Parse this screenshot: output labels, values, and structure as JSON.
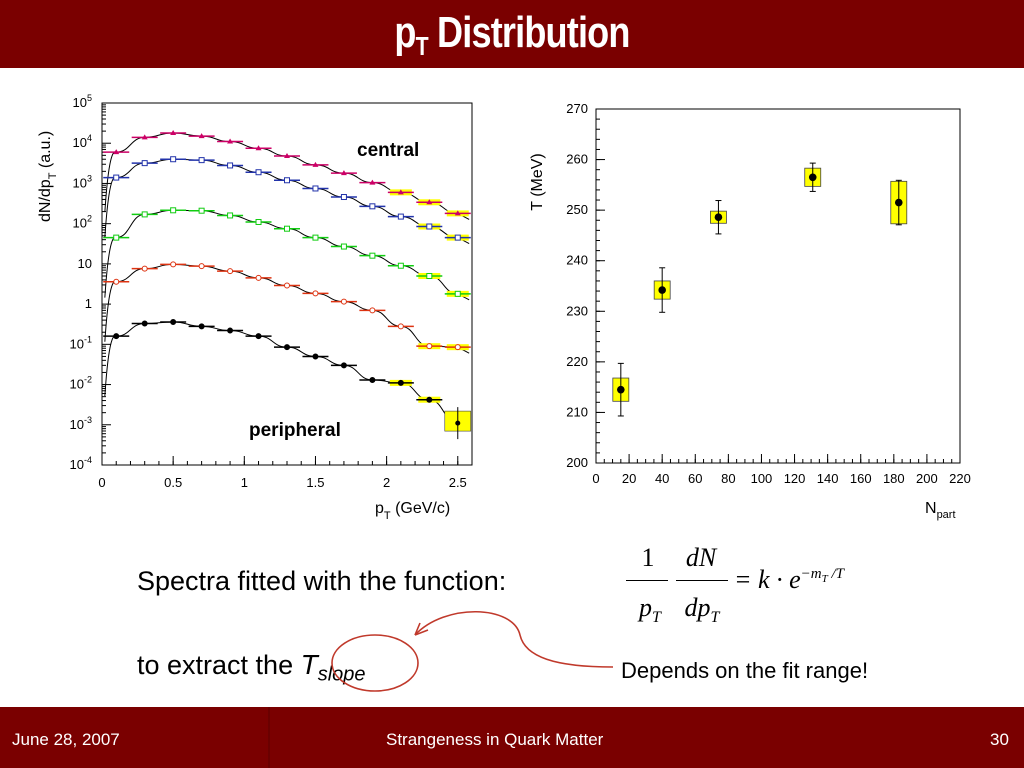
{
  "slide": {
    "title_main": "p",
    "title_sub": "T",
    "title_rest": " Distribution",
    "spectra_text": "Spectra fitted with the function:",
    "extract_prefix": "to extract the ",
    "tslope_T": "T",
    "tslope_sub": "slope",
    "note": "Depends on the fit range!",
    "formula": {
      "num1": "1",
      "den1": "p",
      "den1_sub": "T",
      "num2": "dN",
      "den2": "dp",
      "den2_sub": "T",
      "rhs": "= k · e",
      "exp": "−m",
      "exp_sub": "T",
      "exp_rest": " /T"
    }
  },
  "footer": {
    "date": "June 28, 2007",
    "center": "Strangeness in Quark Matter",
    "page": "30"
  },
  "colors": {
    "header": "#7a0000",
    "band_fill": "#ffff00",
    "circle": "#c0392b"
  },
  "chart_data": [
    {
      "type": "scatter",
      "log_y": true,
      "xlabel": "p",
      "xlabel_sub": "T",
      "xlabel_rest": " (GeV/c)",
      "ylabel": "dN/dp",
      "ylabel_sub": "T",
      "ylabel_rest": " (a.u.)",
      "xlim": [
        0,
        2.6
      ],
      "ylim_exp": [
        -4,
        5
      ],
      "xticks": [
        "0",
        "0.5",
        "1",
        "1.5",
        "2",
        "2.5"
      ],
      "xtick_values": [
        0,
        0.5,
        1,
        1.5,
        2,
        2.5
      ],
      "yticks": [
        {
          "base": "10",
          "exp": "-4",
          "v": -4
        },
        {
          "base": "10",
          "exp": "-3",
          "v": -3
        },
        {
          "base": "10",
          "exp": "-2",
          "v": -2
        },
        {
          "base": "10",
          "exp": "-1",
          "v": -1
        },
        {
          "base": "1",
          "exp": "",
          "v": 0
        },
        {
          "base": "10",
          "exp": "",
          "v": 1
        },
        {
          "base": "10",
          "exp": "2",
          "v": 2
        },
        {
          "base": "10",
          "exp": "3",
          "v": 3
        },
        {
          "base": "10",
          "exp": "4",
          "v": 4
        },
        {
          "base": "10",
          "exp": "5",
          "v": 5
        }
      ],
      "annotations": [
        "central",
        "peripheral"
      ],
      "series": [
        {
          "color": "#cc0066",
          "marker": "triangle",
          "x": [
            0.1,
            0.3,
            0.5,
            0.7,
            0.9,
            1.1,
            1.3,
            1.5,
            1.7,
            1.9,
            2.1,
            2.3,
            2.5
          ],
          "y": [
            6000.0,
            14000.0,
            18000.0,
            15000.0,
            11000.0,
            7500.0,
            4800.0,
            2900.0,
            1800.0,
            1050.0,
            600.0,
            340.0,
            180.0
          ]
        },
        {
          "color": "#2233aa",
          "marker": "square",
          "x": [
            0.1,
            0.3,
            0.5,
            0.7,
            0.9,
            1.1,
            1.3,
            1.5,
            1.7,
            1.9,
            2.1,
            2.3,
            2.5
          ],
          "y": [
            1400.0,
            3200.0,
            4000.0,
            3800.0,
            2800.0,
            1900.0,
            1200.0,
            750.0,
            460.0,
            270.0,
            150.0,
            85,
            45
          ]
        },
        {
          "color": "#11cc11",
          "marker": "square",
          "x": [
            0.1,
            0.3,
            0.5,
            0.7,
            0.9,
            1.1,
            1.3,
            1.5,
            1.7,
            1.9,
            2.1,
            2.3,
            2.5
          ],
          "y": [
            45,
            170,
            215,
            210,
            160,
            110,
            75,
            45,
            27,
            16,
            9,
            5,
            1.8
          ]
        },
        {
          "color": "#dd3311",
          "marker": "circle",
          "x": [
            0.1,
            0.3,
            0.5,
            0.7,
            0.9,
            1.1,
            1.3,
            1.5,
            1.7,
            1.9,
            2.1,
            2.3,
            2.5
          ],
          "y": [
            3.6,
            7.6,
            9.7,
            8.8,
            6.6,
            4.5,
            2.9,
            1.85,
            1.15,
            0.7,
            0.28,
            0.09,
            0.085
          ]
        },
        {
          "color": "#000000",
          "marker": "circle",
          "x": [
            0.1,
            0.3,
            0.5,
            0.7,
            0.9,
            1.1,
            1.3,
            1.5,
            1.7,
            1.9,
            2.1,
            2.3,
            2.5
          ],
          "y": [
            0.16,
            0.33,
            0.36,
            0.28,
            0.22,
            0.16,
            0.085,
            0.05,
            0.03,
            0.013,
            0.011,
            0.0042,
            0.0011
          ]
        }
      ]
    },
    {
      "type": "scatter",
      "xlabel": "N",
      "xlabel_sub": "part",
      "ylabel": "T (MeV)",
      "xlim": [
        0,
        220
      ],
      "ylim": [
        200,
        270
      ],
      "xticks": [
        "0",
        "20",
        "40",
        "60",
        "80",
        "100",
        "120",
        "140",
        "160",
        "180",
        "200",
        "220"
      ],
      "xtick_values": [
        0,
        20,
        40,
        60,
        80,
        100,
        120,
        140,
        160,
        180,
        200,
        220
      ],
      "yticks": [
        "200",
        "210",
        "220",
        "230",
        "240",
        "250",
        "260",
        "270"
      ],
      "ytick_values": [
        200,
        210,
        220,
        230,
        240,
        250,
        260,
        270
      ],
      "points": [
        {
          "x": 15,
          "y": 214.5,
          "err": 5.2,
          "sys": 2.3
        },
        {
          "x": 40,
          "y": 234.2,
          "err": 4.4,
          "sys": 1.8
        },
        {
          "x": 74,
          "y": 248.6,
          "err": 3.3,
          "sys": 1.2
        },
        {
          "x": 131,
          "y": 256.5,
          "err": 2.8,
          "sys": 1.8
        },
        {
          "x": 183,
          "y": 251.5,
          "err": 4.4,
          "sys": 4.2
        }
      ]
    }
  ]
}
